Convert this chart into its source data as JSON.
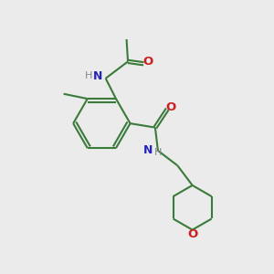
{
  "bg_color": "#ebebeb",
  "bond_color": "#3a7a3a",
  "N_color": "#2525bb",
  "O_color": "#cc2020",
  "line_width": 1.5,
  "font_size": 8.5,
  "figsize": [
    3.0,
    3.0
  ],
  "dpi": 100,
  "xlim": [
    0,
    10
  ],
  "ylim": [
    0,
    10
  ]
}
